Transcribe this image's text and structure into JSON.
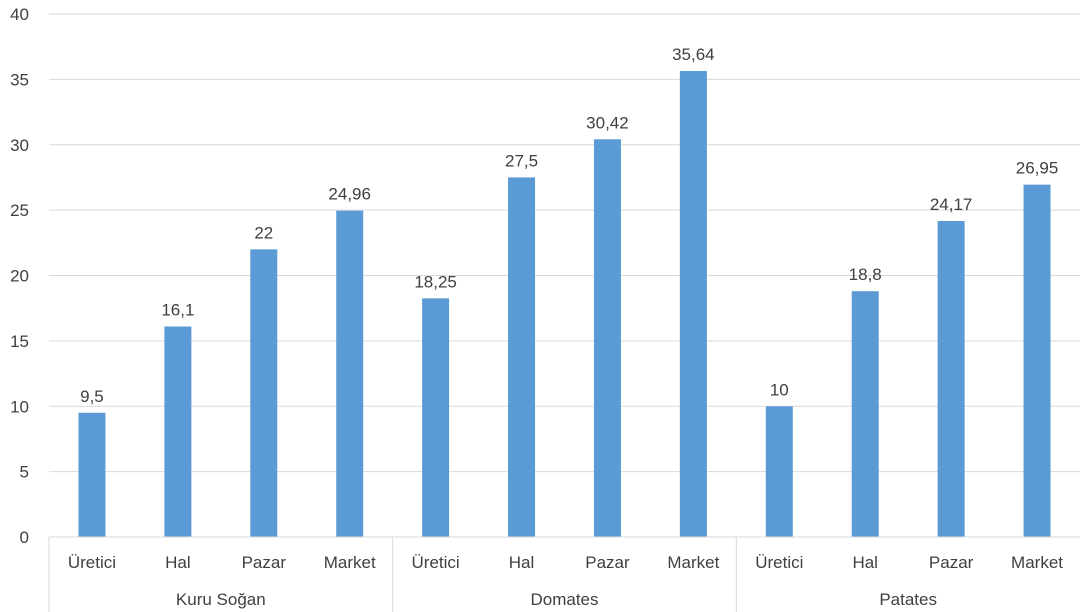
{
  "chart_data": {
    "type": "bar",
    "groups": [
      {
        "name": "Kuru Soğan",
        "categories": [
          "Üretici",
          "Hal",
          "Pazar",
          "Market"
        ],
        "values": [
          9.5,
          16.1,
          22,
          24.96
        ],
        "labels": [
          "9,5",
          "16,1",
          "22",
          "24,96"
        ]
      },
      {
        "name": "Domates",
        "categories": [
          "Üretici",
          "Hal",
          "Pazar",
          "Market"
        ],
        "values": [
          18.25,
          27.5,
          30.42,
          35.64
        ],
        "labels": [
          "18,25",
          "27,5",
          "30,42",
          "35,64"
        ]
      },
      {
        "name": "Patates",
        "categories": [
          "Üretici",
          "Hal",
          "Pazar",
          "Market"
        ],
        "values": [
          10,
          18.8,
          24.17,
          26.95
        ],
        "labels": [
          "10",
          "18,8",
          "24,17",
          "26,95"
        ]
      }
    ],
    "ylim": [
      0,
      40
    ],
    "yticks": [
      0,
      5,
      10,
      15,
      20,
      25,
      30,
      35,
      40
    ],
    "grid": true,
    "bar_color": "#5b9bd5",
    "grid_color": "#d9d9d9",
    "text_color": "#404040"
  }
}
